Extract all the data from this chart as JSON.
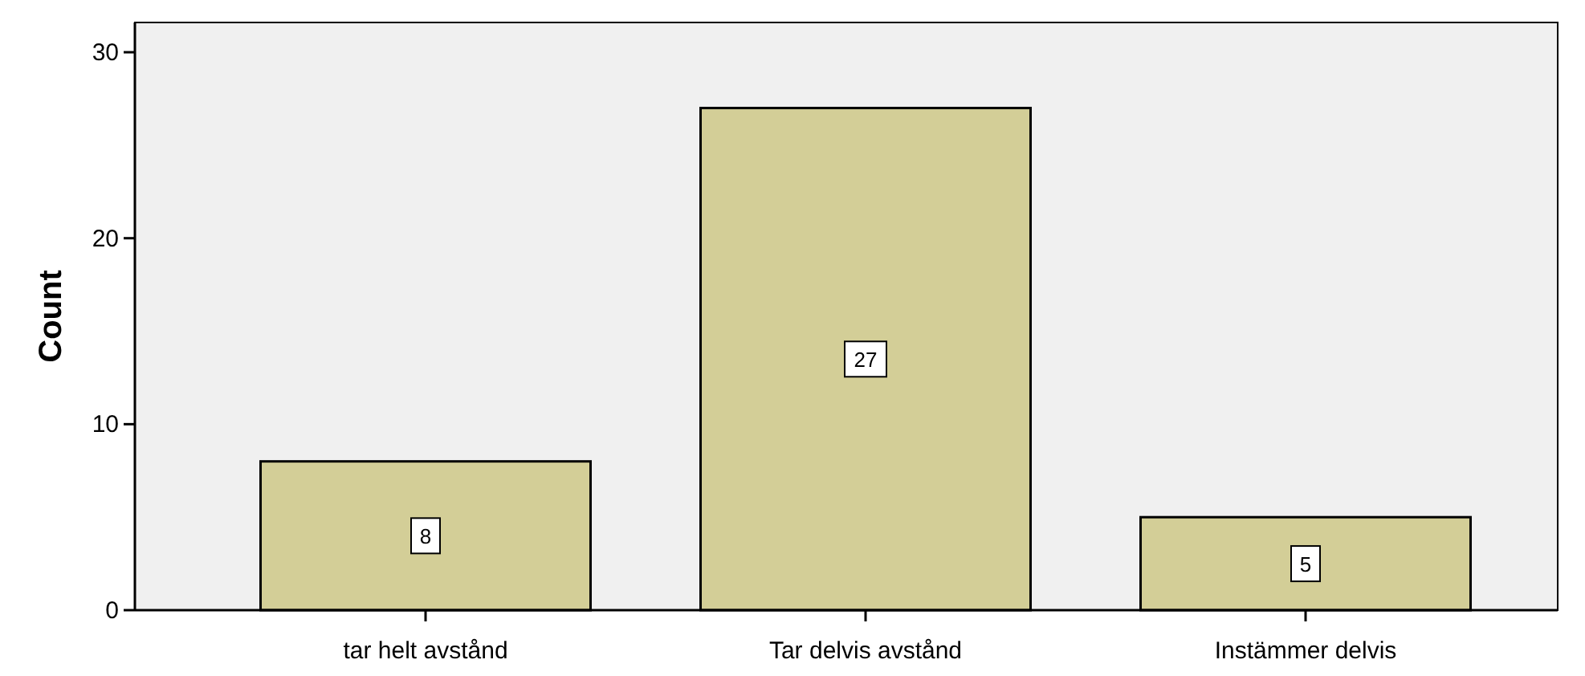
{
  "chart_data": {
    "type": "bar",
    "ylabel": "Count",
    "categories": [
      "tar helt avstånd",
      "Tar delvis avstånd",
      "Instämmer delvis"
    ],
    "values": [
      8,
      27,
      5
    ],
    "color": "#d3ce97",
    "ylim": [
      0,
      31.6
    ],
    "yticks": [
      0,
      10,
      20,
      30
    ],
    "grid": false,
    "data_labels": true
  }
}
